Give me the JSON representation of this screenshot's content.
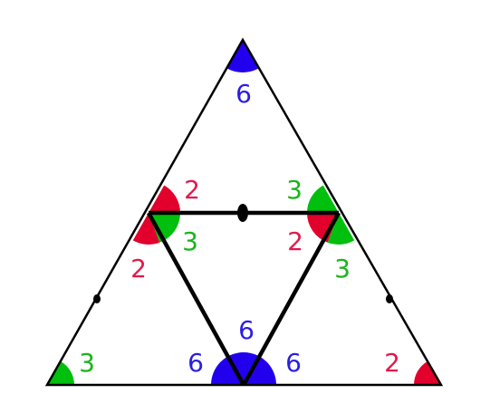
{
  "colors": {
    "blue": "#2200ee",
    "red": "#e2002c",
    "green": "#00bf0d",
    "stroke": "#000000",
    "label_blue": "#2a1ee0",
    "label_red": "#e2194b",
    "label_green": "#19b51d"
  },
  "labels": {
    "top_angle": "6",
    "left_mid_upper": "2",
    "left_mid_inner": "3",
    "left_mid_lower": "2",
    "right_mid_upper": "3",
    "right_mid_inner": "2",
    "right_mid_lower": "3",
    "bottom_center_top": "6",
    "bottom_center_left": "6",
    "bottom_center_right": "6",
    "bottom_left_corner": "3",
    "bottom_right_corner": "2"
  }
}
